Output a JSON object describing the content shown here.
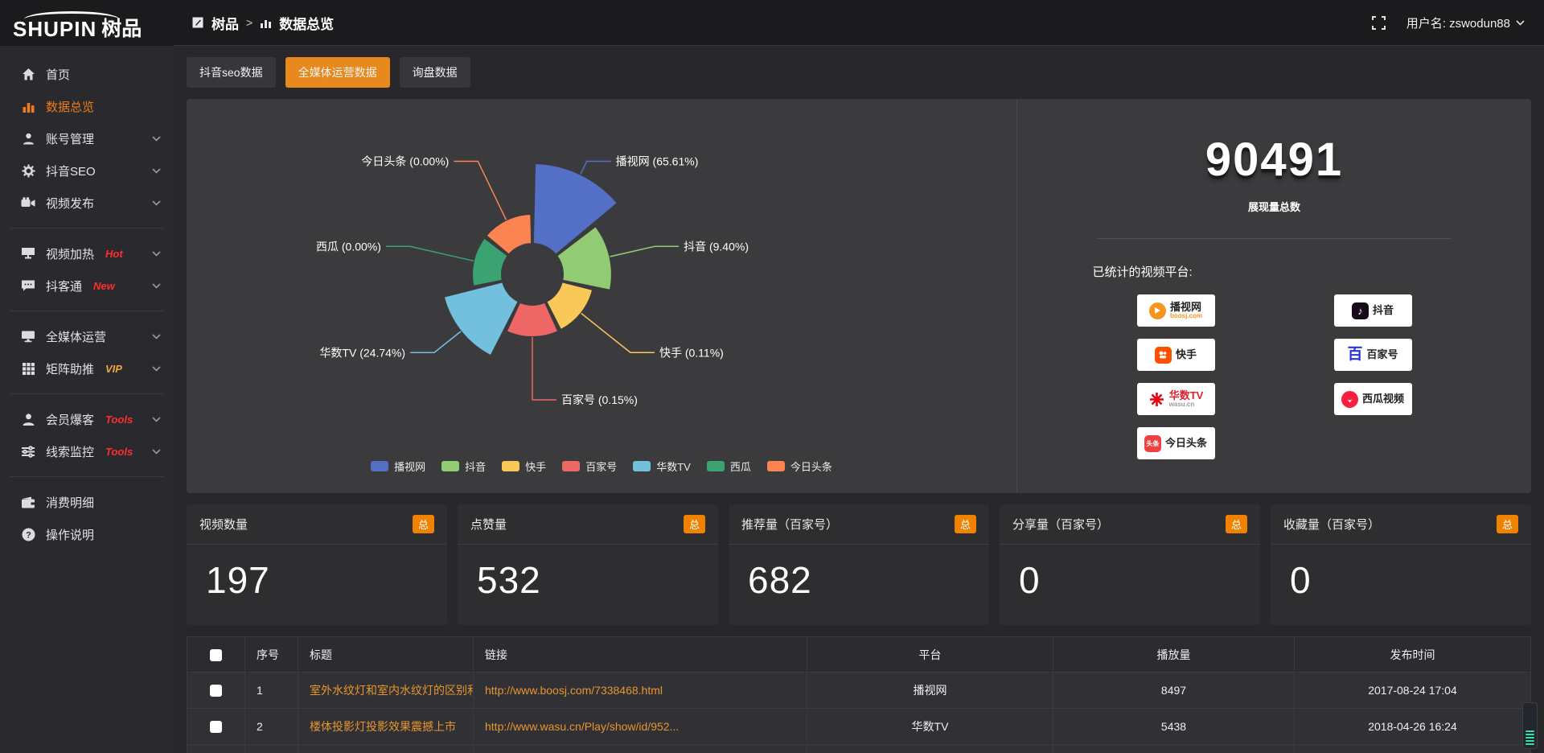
{
  "logo": {
    "brand_en": "SHUPIN",
    "brand_cn": "树品"
  },
  "topbar": {
    "breadcrumb_root": "树品",
    "breadcrumb_sep": ">",
    "breadcrumb_current": "数据总览",
    "username_label": "用户名: zswodun88"
  },
  "colors": {
    "accent_orange": "#e8891e",
    "badge_orange": "#f08200",
    "link_orange": "#e6962e",
    "tag_red": "#ff2d2d",
    "tag_vip": "#f0a43c"
  },
  "sidebar": {
    "items": [
      {
        "id": "home",
        "label": "首页",
        "icon": "home-icon"
      },
      {
        "id": "data-overview",
        "label": "数据总览",
        "icon": "bar-chart-icon",
        "active": true
      },
      {
        "id": "account-manage",
        "label": "账号管理",
        "icon": "user-icon",
        "chevron": true
      },
      {
        "id": "douyin-seo",
        "label": "抖音SEO",
        "icon": "gear-icon",
        "chevron": true
      },
      {
        "id": "video-publish",
        "label": "视频发布",
        "icon": "video-camera-icon",
        "chevron": true
      },
      {
        "type": "divider"
      },
      {
        "id": "video-heat",
        "label": "视频加热",
        "icon": "monitor-icon",
        "chevron": true,
        "tag": {
          "text": "Hot",
          "color": "#ff2d2d"
        }
      },
      {
        "id": "douketong",
        "label": "抖客通",
        "icon": "comment-icon",
        "chevron": true,
        "tag": {
          "text": "New",
          "color": "#ff2d2d"
        }
      },
      {
        "type": "divider"
      },
      {
        "id": "media-operation",
        "label": "全媒体运营",
        "icon": "desktop-icon",
        "chevron": true
      },
      {
        "id": "matrix-boost",
        "label": "矩阵助推",
        "icon": "grid-icon",
        "chevron": true,
        "tag": {
          "text": "VIP",
          "color": "#f0a43c"
        }
      },
      {
        "type": "divider"
      },
      {
        "id": "member-baoke",
        "label": "会员爆客",
        "icon": "person-icon",
        "chevron": true,
        "tag": {
          "text": "Tools",
          "color": "#ff2d2d"
        }
      },
      {
        "id": "clue-monitor",
        "label": "线索监控",
        "icon": "sliders-icon",
        "chevron": true,
        "tag": {
          "text": "Tools",
          "color": "#ff2d2d"
        }
      },
      {
        "type": "divider"
      },
      {
        "id": "consume-detail",
        "label": "消费明细",
        "icon": "wallet-icon"
      },
      {
        "id": "operation-guide",
        "label": "操作说明",
        "icon": "question-icon"
      }
    ]
  },
  "tabs": [
    {
      "label": "抖音seo数据",
      "active": false
    },
    {
      "label": "全媒体运营数据",
      "active": true
    },
    {
      "label": "询盘数据",
      "active": false
    }
  ],
  "chart_data": {
    "type": "pie",
    "subtype": "nightingale-rose",
    "label_format": "{name} ({pct})",
    "legend_position": "bottom",
    "series": [
      {
        "name": "播视网",
        "pct": "65.61%",
        "value": 65.61,
        "color": "#5470c6"
      },
      {
        "name": "抖音",
        "pct": "9.40%",
        "value": 9.4,
        "color": "#91cc75"
      },
      {
        "name": "快手",
        "pct": "0.11%",
        "value": 0.11,
        "color": "#fac858"
      },
      {
        "name": "百家号",
        "pct": "0.15%",
        "value": 0.15,
        "color": "#ee6666"
      },
      {
        "name": "华数TV",
        "pct": "24.74%",
        "value": 24.74,
        "color": "#73c0de"
      },
      {
        "name": "西瓜",
        "pct": "0.00%",
        "value": 0.0,
        "color": "#3ba272"
      },
      {
        "name": "今日头条",
        "pct": "0.00%",
        "value": 0.0,
        "color": "#fc8452"
      }
    ],
    "legend": [
      "播视网",
      "抖音",
      "快手",
      "百家号",
      "华数TV",
      "西瓜",
      "今日头条"
    ]
  },
  "summary": {
    "total_value": "90491",
    "total_label": "展现量总数",
    "platforms_label": "已统计的视频平台:",
    "platforms": [
      {
        "name": "播视网",
        "sub": "boosj.com",
        "logo": "boosj"
      },
      {
        "name": "抖音",
        "logo": "douyin"
      },
      {
        "name": "快手",
        "logo": "kuaishou"
      },
      {
        "name": "百家号",
        "logo": "baijiahao"
      },
      {
        "name": "华数TV",
        "sub": "wasu.cn",
        "logo": "wasu"
      },
      {
        "name": "西瓜视频",
        "logo": "xigua"
      },
      {
        "name": "今日头条",
        "logo": "toutiao"
      }
    ]
  },
  "stat_cards": [
    {
      "title": "视频数量",
      "badge": "总",
      "value": "197"
    },
    {
      "title": "点赞量",
      "badge": "总",
      "value": "532"
    },
    {
      "title": "推荐量（百家号）",
      "badge": "总",
      "value": "682"
    },
    {
      "title": "分享量（百家号）",
      "badge": "总",
      "value": "0"
    },
    {
      "title": "收藏量（百家号）",
      "badge": "总",
      "value": "0"
    }
  ],
  "table": {
    "headers": [
      "",
      "序号",
      "标题",
      "链接",
      "平台",
      "播放量",
      "发布时间"
    ],
    "rows": [
      {
        "index": "1",
        "title": "室外水纹灯和室内水纹灯的区别和简介",
        "link": "http://www.boosj.com/7338468.html",
        "platform": "播视网",
        "views": "8497",
        "time": "2017-08-24 17:04"
      },
      {
        "index": "2",
        "title": "楼体投影灯投影效果震撼上市",
        "link": "http://www.wasu.cn/Play/show/id/952...",
        "platform": "华数TV",
        "views": "5438",
        "time": "2018-04-26 16:24"
      }
    ]
  }
}
